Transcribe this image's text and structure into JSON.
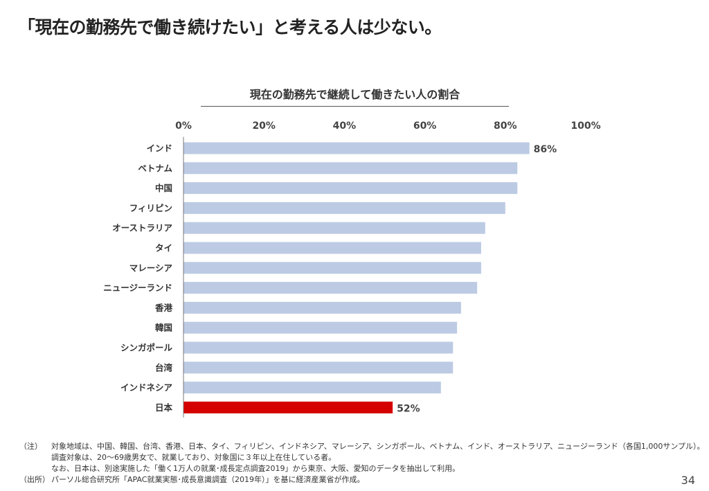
{
  "title": "「現在の勤務先で働き続けたい」と考える人は少ない。",
  "chart_data": {
    "type": "bar",
    "orientation": "horizontal",
    "title": "現在の勤務先で継続して働きたい人の割合",
    "categories": [
      "インド",
      "ベトナム",
      "中国",
      "フィリピン",
      "オーストラリア",
      "タイ",
      "マレーシア",
      "ニュージーランド",
      "香港",
      "韓国",
      "シンガポール",
      "台湾",
      "インドネシア",
      "日本"
    ],
    "values": [
      86,
      83,
      83,
      80,
      75,
      74,
      74,
      73,
      69,
      68,
      67,
      67,
      64,
      52
    ],
    "data_labels": {
      "インド": "86%",
      "日本": "52%"
    },
    "xlim": [
      0,
      100
    ],
    "ticks": [
      "0%",
      "20%",
      "40%",
      "60%",
      "80%",
      "100%"
    ],
    "tick_position": "top",
    "grid": false,
    "colors": {
      "default": "#bccbe3",
      "highlight": "#d50000",
      "highlight_category": "日本"
    }
  },
  "notes": {
    "note_label": "（注）",
    "note_lines": [
      "対象地域は、中国、韓国、台湾、香港、日本、タイ、フィリピン、インドネシア、マレーシア、シンガポール、ベトナム、インド、オーストラリア、ニュージーランド（各国1,000サンプル）。",
      "調査対象は、20～69歳男女で、就業しており、対象国に３年以上在住している者。",
      "なお、日本は、別途実施した「働く1万人の就業･成長定点調査2019」から東京、大阪、愛知のデータを抽出して利用。"
    ],
    "source_label": "（出所）",
    "source": "パーソル総合研究所「APAC就業実態･成長意識調査（2019年）」を基に経済産業省が作成。"
  },
  "page_number": "34"
}
